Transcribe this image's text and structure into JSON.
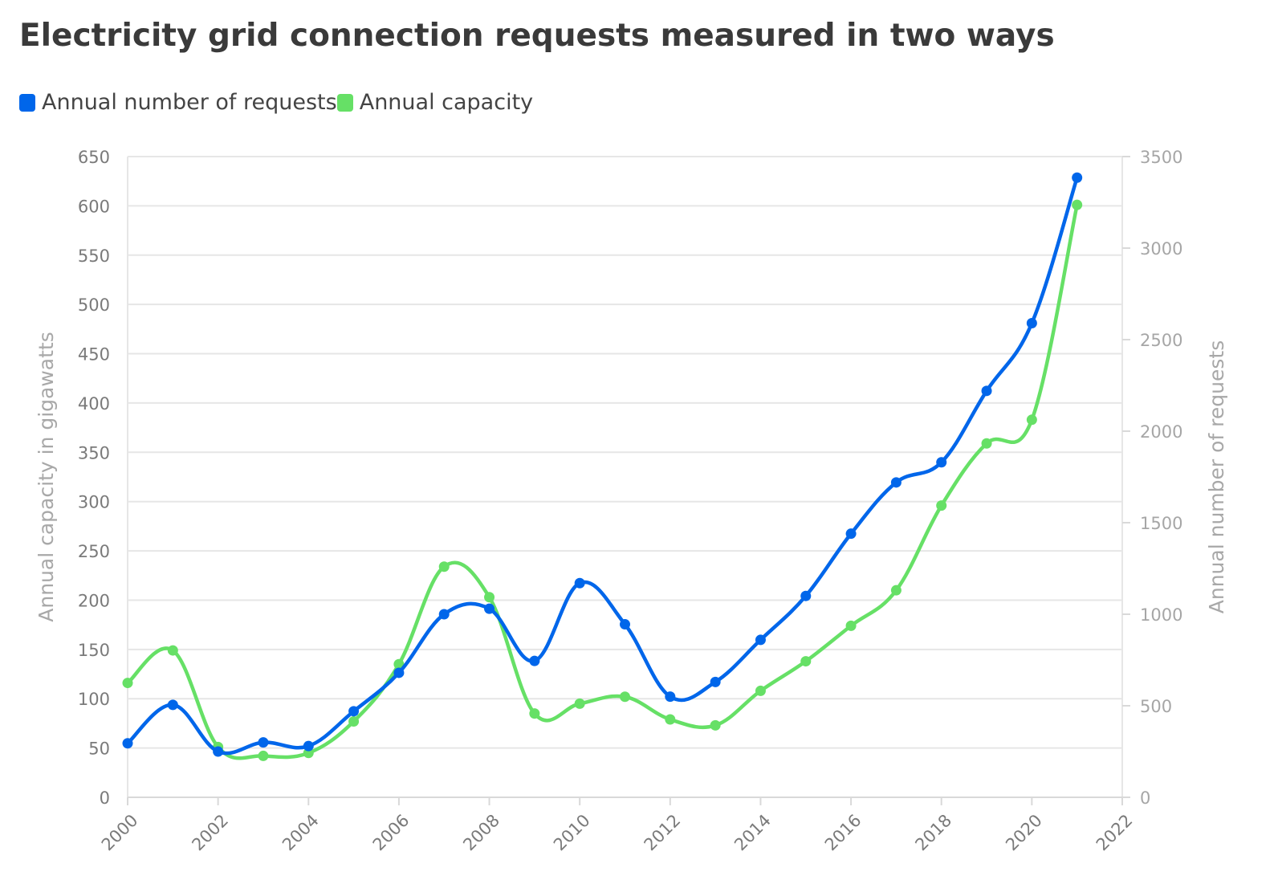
{
  "chart_data": {
    "type": "line",
    "title": "Electricity grid connection requests measured in two ways",
    "x": [
      2000,
      2001,
      2002,
      2003,
      2004,
      2005,
      2006,
      2007,
      2008,
      2009,
      2010,
      2011,
      2012,
      2013,
      2014,
      2015,
      2016,
      2017,
      2018,
      2019,
      2020,
      2021
    ],
    "x_ticks": [
      2000,
      2002,
      2004,
      2006,
      2008,
      2010,
      2012,
      2014,
      2016,
      2018,
      2020,
      2022
    ],
    "xlim": [
      2000,
      2022
    ],
    "ylabel_left": "Annual capacity in gigawatts",
    "ylim_left": [
      0,
      650
    ],
    "yticks_left": [
      0,
      50,
      100,
      150,
      200,
      250,
      300,
      350,
      400,
      450,
      500,
      550,
      600,
      650
    ],
    "ylabel_right": "Annual number of requests",
    "ylim_right": [
      0,
      3500
    ],
    "yticks_right": [
      0,
      500,
      1000,
      1500,
      2000,
      2500,
      3000,
      3500
    ],
    "grid": true,
    "legend_position": "top-left",
    "series": [
      {
        "name": "Annual number of requests",
        "axis": "right",
        "color": "#0066ea",
        "values": [
          295,
          505,
          250,
          300,
          280,
          470,
          680,
          1000,
          1030,
          745,
          1170,
          945,
          550,
          630,
          860,
          1100,
          1440,
          1720,
          1830,
          2220,
          2590,
          3385
        ]
      },
      {
        "name": "Annual capacity",
        "axis": "left",
        "color": "#66e066",
        "values": [
          116,
          149,
          51,
          42,
          45,
          77,
          135,
          234,
          203,
          85,
          95,
          102,
          79,
          73,
          108,
          138,
          174,
          210,
          296,
          359,
          383,
          601
        ]
      }
    ]
  }
}
